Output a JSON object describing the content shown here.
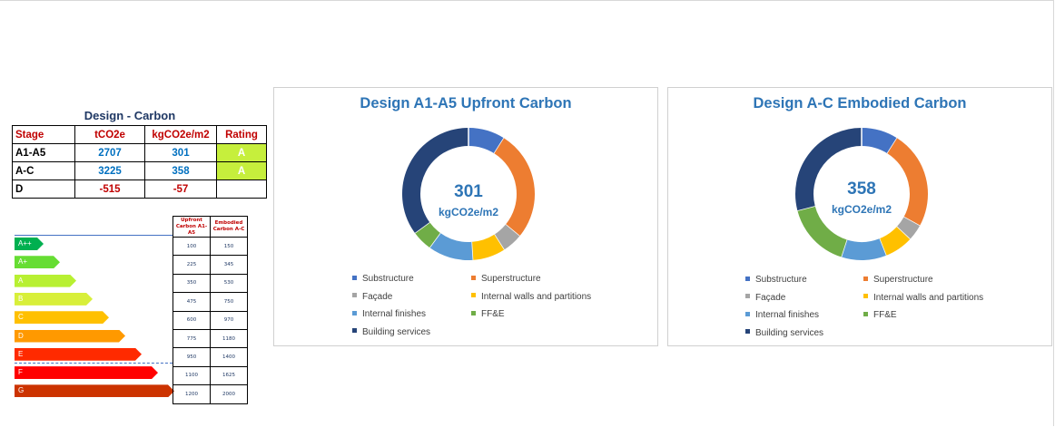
{
  "design_carbon": {
    "title": "Design - Carbon",
    "headers": [
      "Stage",
      "tCO2e",
      "kgCO2e/m2",
      "Rating"
    ],
    "rows": [
      {
        "stage": "A1-A5",
        "tco2e": "2707",
        "kgco2e": "301",
        "rating": "A"
      },
      {
        "stage": "A-C",
        "tco2e": "3225",
        "kgco2e": "358",
        "rating": "A"
      },
      {
        "stage": "D",
        "tco2e": "-515",
        "kgco2e": "-57",
        "rating": ""
      }
    ]
  },
  "rating_scale": {
    "bands": [
      {
        "label": "A++",
        "color": "#00b050"
      },
      {
        "label": "A+",
        "color": "#66dd33"
      },
      {
        "label": "A",
        "color": "#b8f032"
      },
      {
        "label": "B",
        "color": "#d8ef3a"
      },
      {
        "label": "C",
        "color": "#ffc000"
      },
      {
        "label": "D",
        "color": "#ff9900"
      },
      {
        "label": "E",
        "color": "#ff2a00"
      },
      {
        "label": "F",
        "color": "#ff0000"
      },
      {
        "label": "G",
        "color": "#cc3300"
      }
    ],
    "bench_headers": [
      "Upfront Carbon A1-A5",
      "Embodied Carbon A-C"
    ],
    "bench_values": [
      [
        "100",
        "150"
      ],
      [
        "225",
        "345"
      ],
      [
        "350",
        "530"
      ],
      [
        "475",
        "750"
      ],
      [
        "600",
        "970"
      ],
      [
        "775",
        "1180"
      ],
      [
        "950",
        "1400"
      ],
      [
        "1100",
        "1625"
      ],
      [
        "1200",
        "2000"
      ]
    ]
  },
  "legend_labels": [
    "Substructure",
    "Superstructure",
    "Façade",
    "Internal walls and partitions",
    "Internal finishes",
    "FF&E",
    "Building services"
  ],
  "legend_colors": [
    "#4472c4",
    "#ed7d31",
    "#a5a5a5",
    "#ffc000",
    "#5b9bd5",
    "#70ad47",
    "#264478"
  ],
  "chart_data": [
    {
      "type": "pie",
      "title": "Design A1-A5 Upfront Carbon",
      "center_value": "301",
      "center_unit": "kgCO2e/m2",
      "categories": [
        "Substructure",
        "Superstructure",
        "Façade",
        "Internal walls and partitions",
        "Internal finishes",
        "FF&E",
        "Building services"
      ],
      "values": [
        9,
        27,
        5,
        8,
        11,
        5,
        35
      ]
    },
    {
      "type": "pie",
      "title": "Design A-C Embodied Carbon",
      "center_value": "358",
      "center_unit": "kgCO2e/m2",
      "categories": [
        "Substructure",
        "Superstructure",
        "Façade",
        "Internal walls and partitions",
        "Internal finishes",
        "FF&E",
        "Building services"
      ],
      "values": [
        9,
        24,
        4,
        7,
        11,
        16,
        29
      ]
    }
  ]
}
